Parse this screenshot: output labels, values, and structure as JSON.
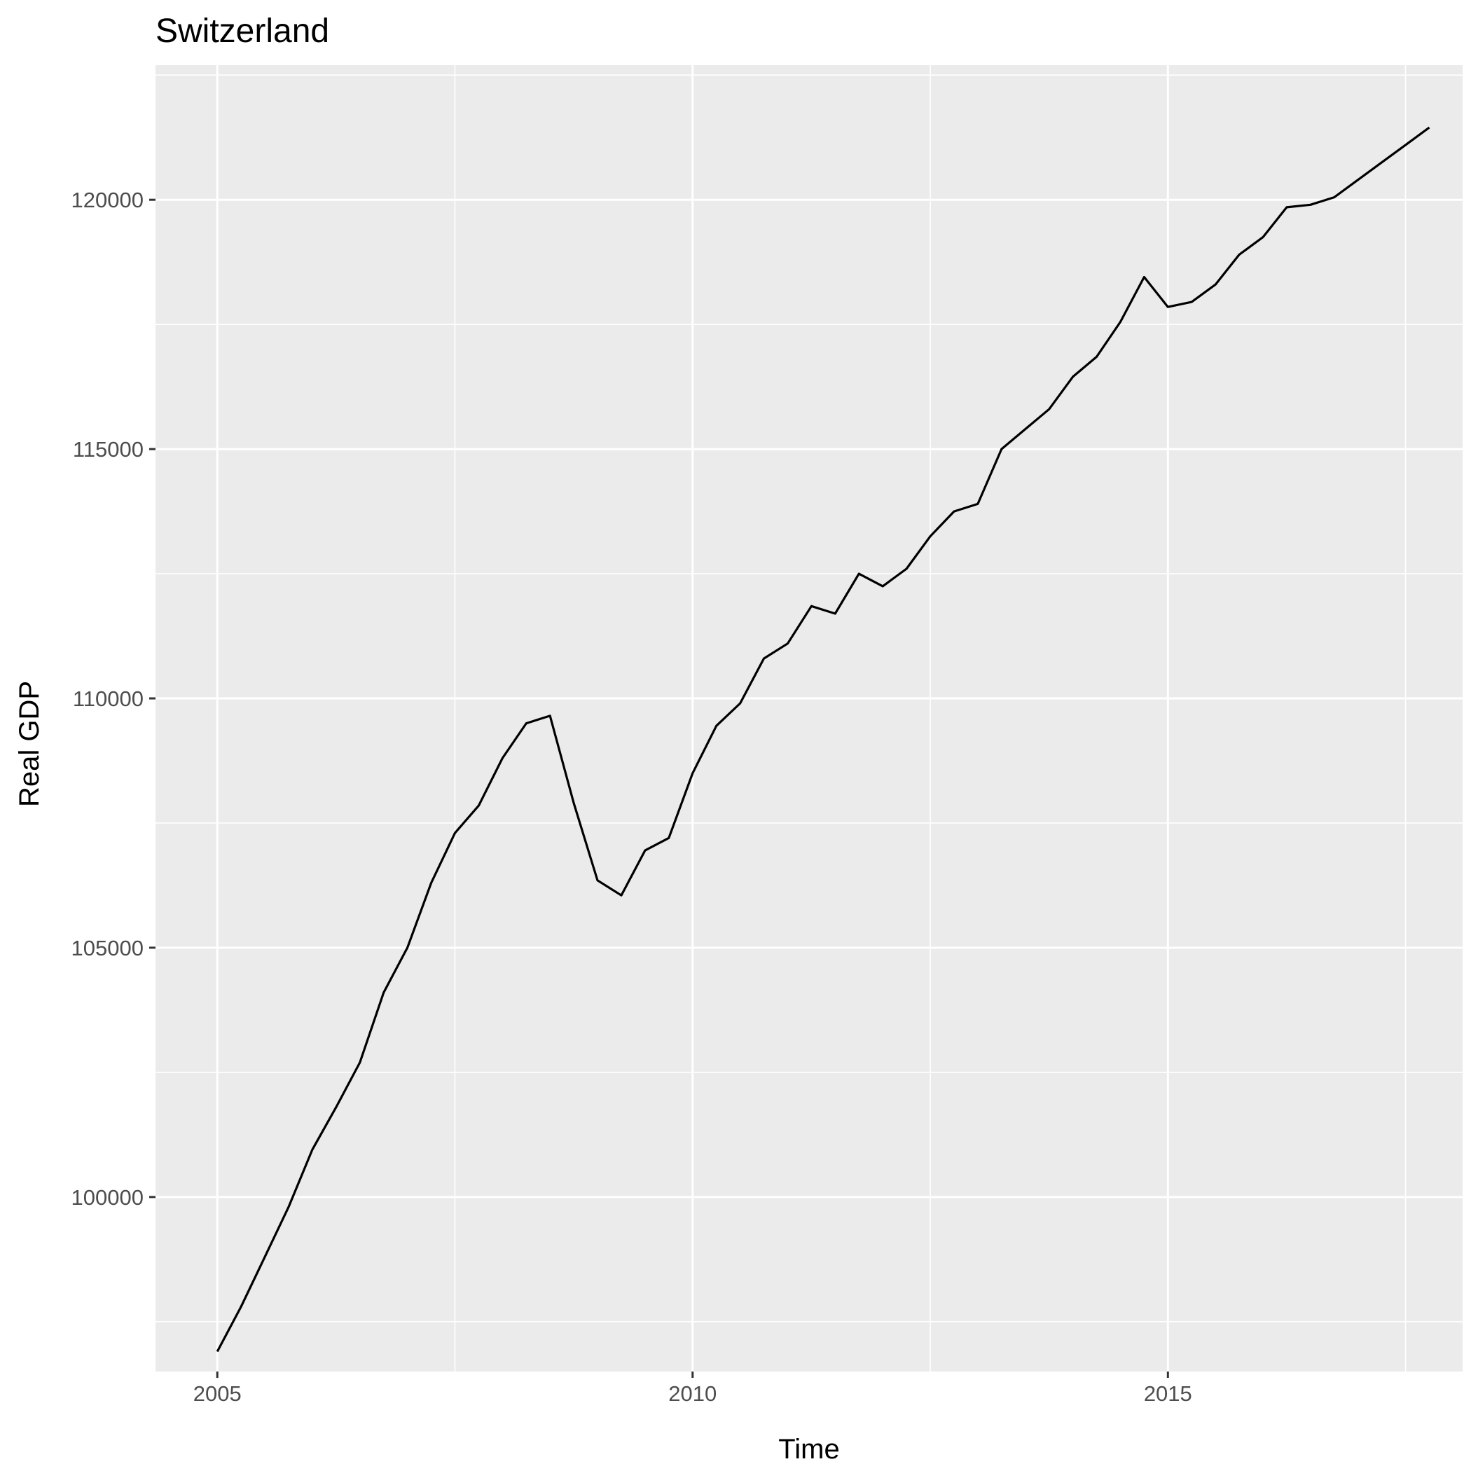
{
  "chart_data": {
    "type": "line",
    "title": "Switzerland",
    "xlabel": "Time",
    "ylabel": "Real GDP",
    "xlim": [
      2004.35,
      2018.1
    ],
    "ylim": [
      96500,
      122700
    ],
    "x_ticks": [
      2005,
      2010,
      2015
    ],
    "x_tick_labels": [
      "2005",
      "2010",
      "2015"
    ],
    "x_minor_ticks": [
      2007.5,
      2012.5,
      2017.5
    ],
    "y_ticks": [
      100000,
      105000,
      110000,
      115000,
      120000
    ],
    "y_tick_labels": [
      "100000",
      "105000",
      "110000",
      "115000",
      "120000"
    ],
    "y_minor_ticks": [
      97500,
      102500,
      107500,
      112500,
      117500,
      122500
    ],
    "grid": true,
    "legend": "none",
    "series": [
      {
        "color": "#000000",
        "x": [
          2005.0,
          2005.25,
          2005.5,
          2005.75,
          2006.0,
          2006.25,
          2006.5,
          2006.75,
          2007.0,
          2007.25,
          2007.5,
          2007.75,
          2008.0,
          2008.25,
          2008.5,
          2008.75,
          2009.0,
          2009.25,
          2009.5,
          2009.75,
          2010.0,
          2010.25,
          2010.5,
          2010.75,
          2011.0,
          2011.25,
          2011.5,
          2011.75,
          2012.0,
          2012.25,
          2012.5,
          2012.75,
          2013.0,
          2013.25,
          2013.5,
          2013.75,
          2014.0,
          2014.25,
          2014.5,
          2014.75,
          2015.0,
          2015.25,
          2015.5,
          2015.75,
          2016.0,
          2016.25,
          2016.5,
          2016.75,
          2017.0,
          2017.25,
          2017.5,
          2017.75
        ],
        "values": [
          96900,
          97800,
          98800,
          99800,
          100950,
          101800,
          102700,
          104100,
          105000,
          106300,
          107300,
          107850,
          108800,
          109500,
          109650,
          107900,
          106350,
          106050,
          106950,
          107200,
          108500,
          109450,
          109900,
          110800,
          111100,
          111850,
          111700,
          112500,
          112250,
          112600,
          113250,
          113750,
          113900,
          115000,
          115400,
          115800,
          116450,
          116850,
          117550,
          118450,
          117850,
          117950,
          118300,
          118900,
          119250,
          119850,
          119900,
          120050,
          120400,
          120750,
          121100,
          121450
        ]
      }
    ],
    "colors": {
      "panel_background": "#ebebeb",
      "grid": "#ffffff",
      "line": "#000000",
      "tick_label": "#4d4d4d",
      "axis_tick": "#333333"
    }
  }
}
